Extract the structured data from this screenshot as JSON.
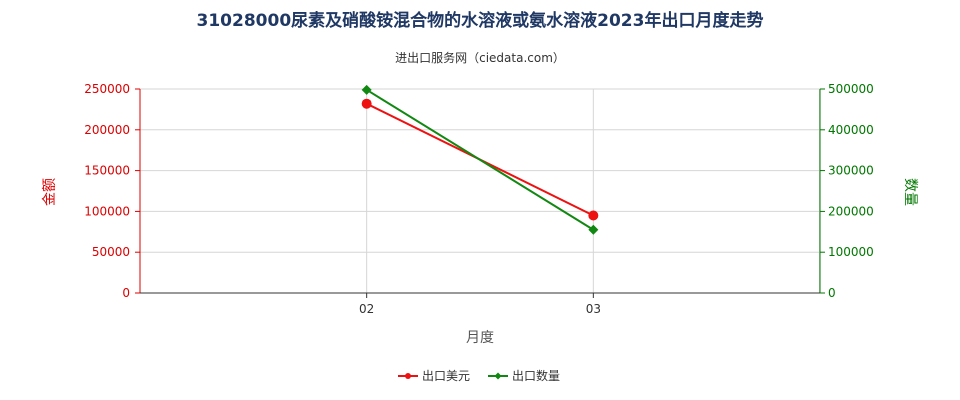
{
  "chart_data": {
    "type": "line",
    "title": "31028000尿素及硝酸铵混合物的水溶液或氨水溶液2023年出口月度走势",
    "subtitle": "进出口服务网（ciedata.com）",
    "xlabel": "月度",
    "ylabel_left": "金额",
    "ylabel_right": "数量",
    "categories": [
      "02",
      "03"
    ],
    "y_left": {
      "min": 0,
      "max": 250000,
      "ticks": [
        "0",
        "50000",
        "100000",
        "150000",
        "200000",
        "250000"
      ],
      "color": "#dd0000"
    },
    "y_right": {
      "min": 0,
      "max": 500000,
      "ticks": [
        "0",
        "100000",
        "200000",
        "300000",
        "400000",
        "500000"
      ],
      "color": "#007700"
    },
    "series": [
      {
        "name": "出口美元",
        "axis": "left",
        "color": "#ee1111",
        "marker": "circle",
        "values": [
          232000,
          95000
        ]
      },
      {
        "name": "出口数量",
        "axis": "right",
        "color": "#118811",
        "marker": "diamond",
        "values": [
          498000,
          155000
        ]
      }
    ],
    "grid": true,
    "legend_position": "bottom"
  }
}
